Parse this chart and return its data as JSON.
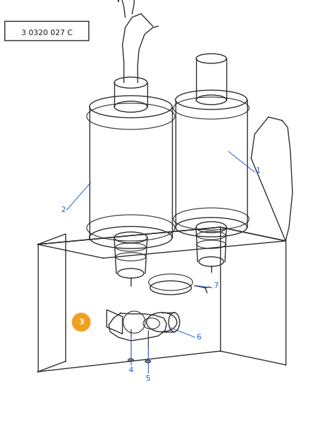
{
  "bg_color": "#ffffff",
  "line_color": "#2a2a2a",
  "label_color": "#2255cc",
  "title_box_text": "3 0320 027 C",
  "orange_circle_color": "#f0a020"
}
